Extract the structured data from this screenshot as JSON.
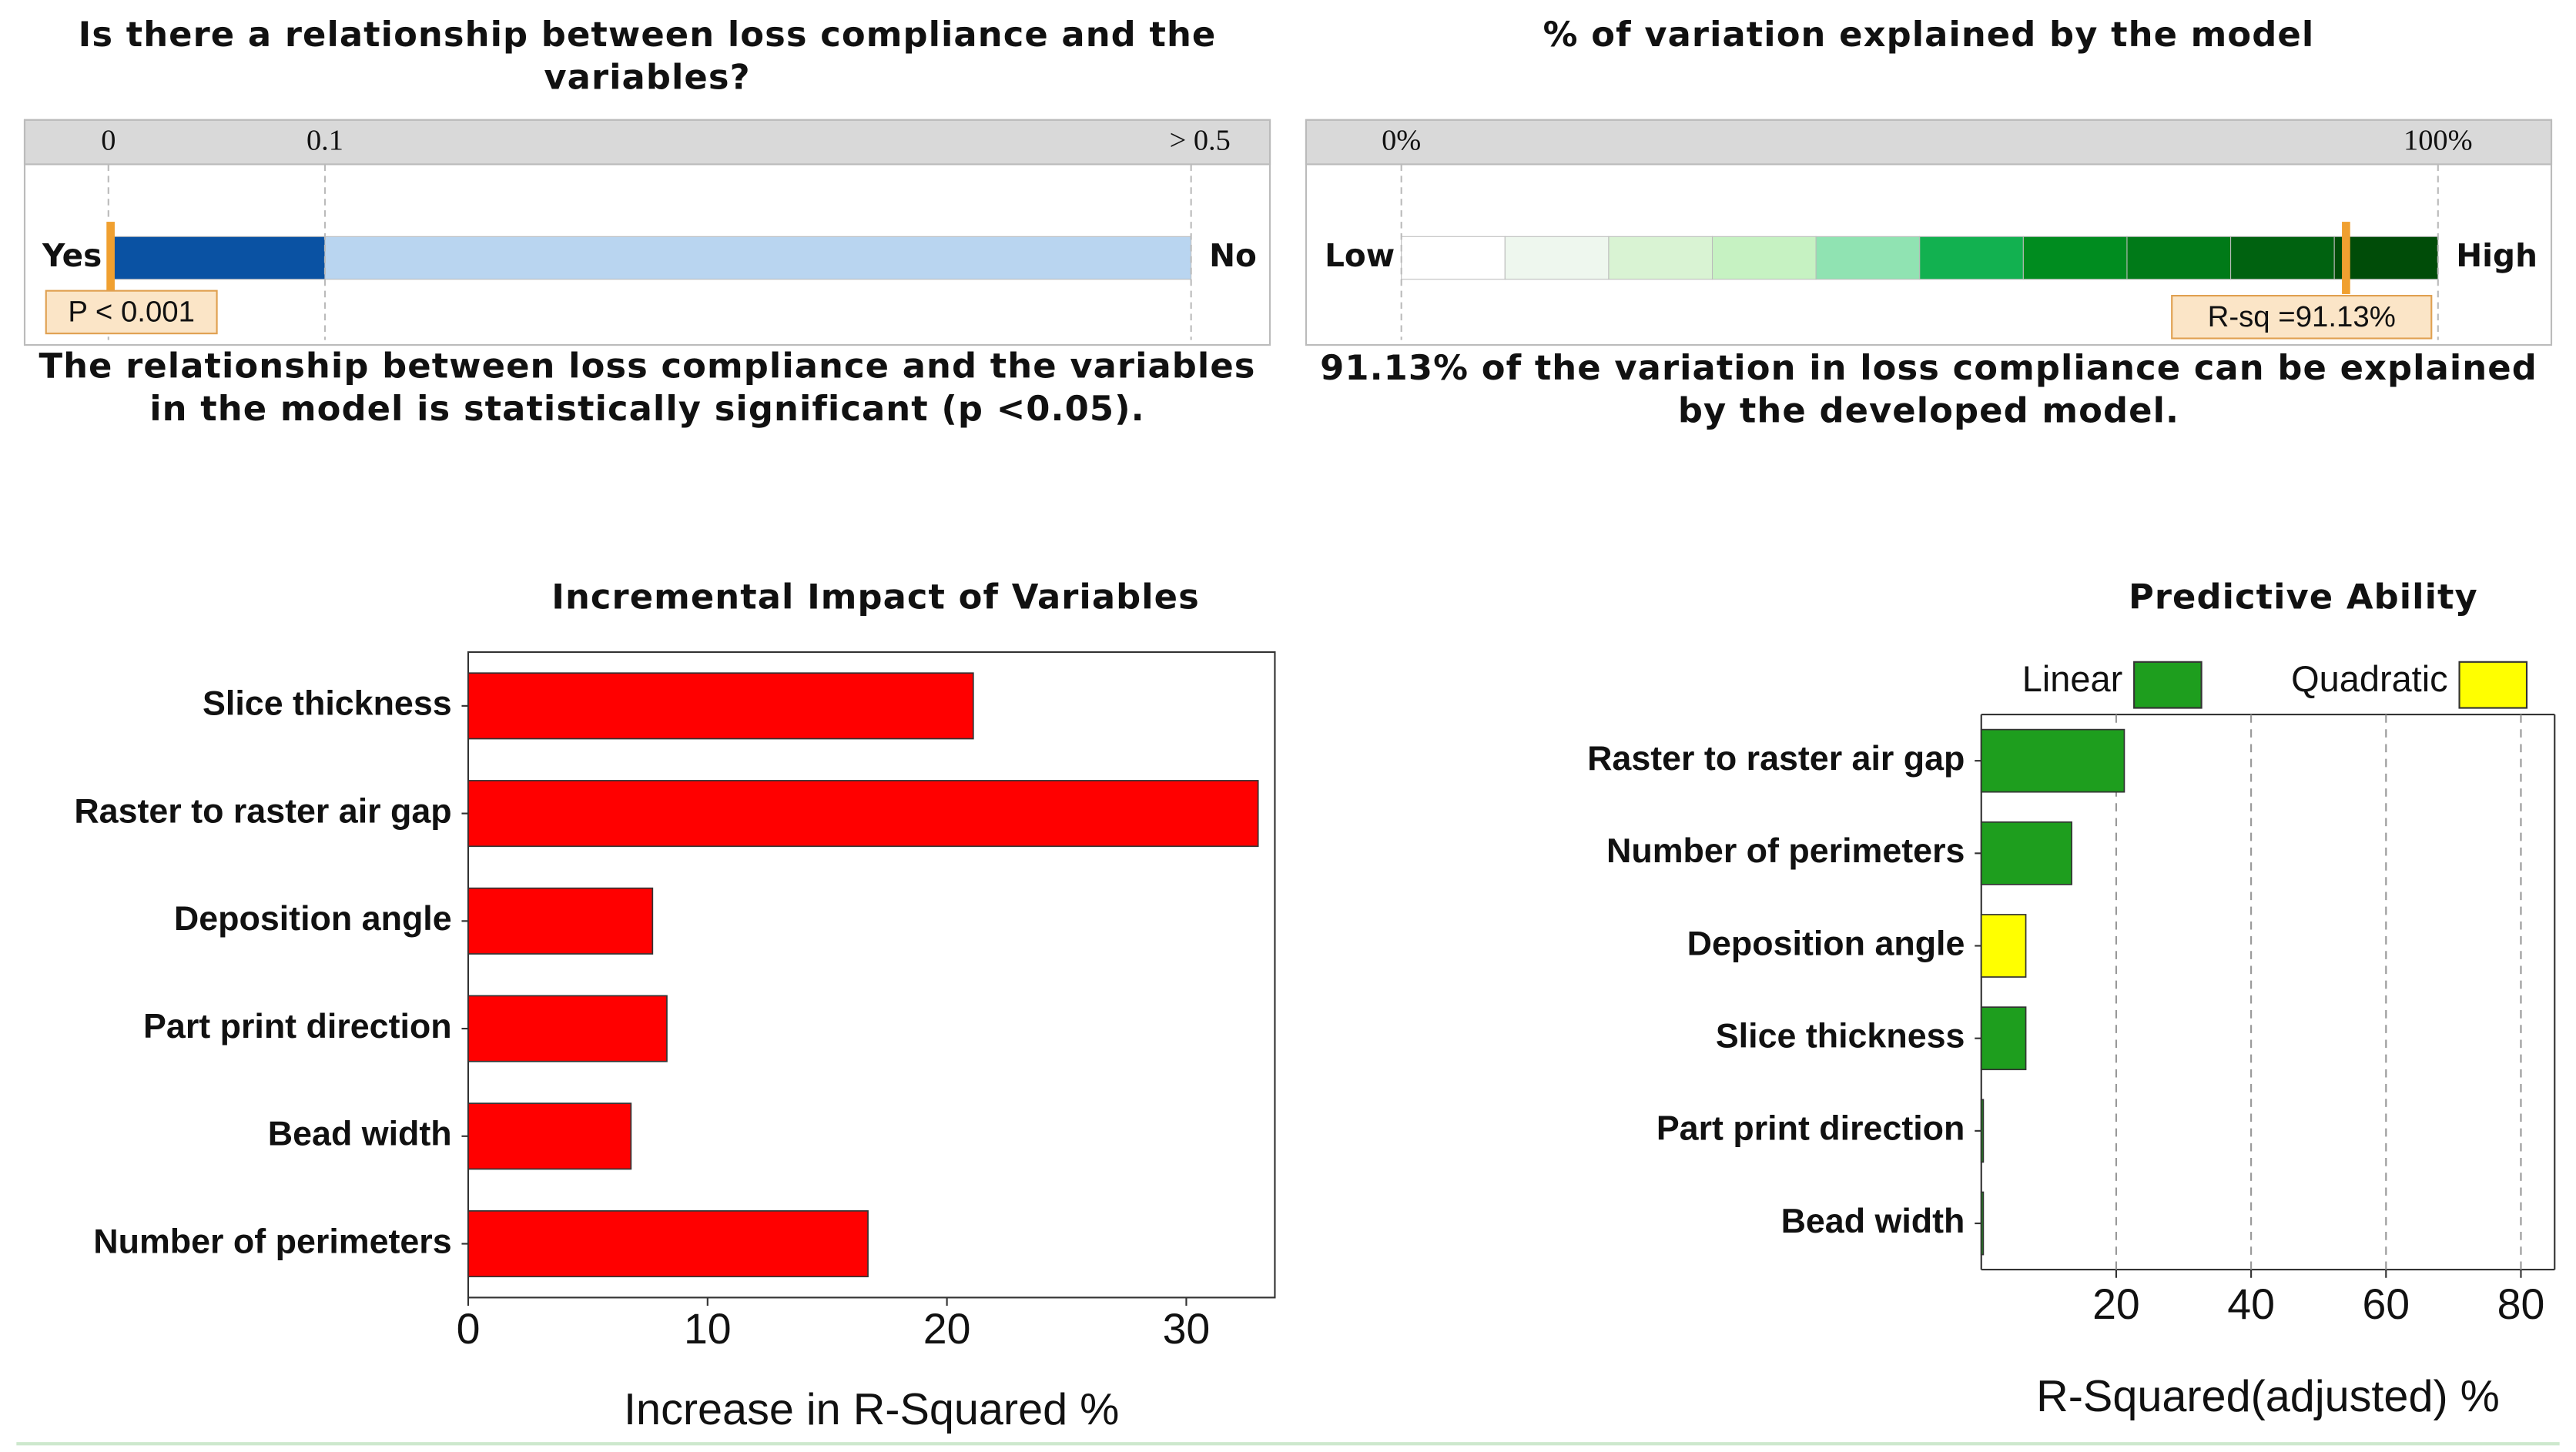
{
  "chart_data": [
    {
      "type": "gauge",
      "title": "Is there a relationship between loss compliance and the variables?",
      "xlim": [
        0,
        0.5
      ],
      "xticks": [
        0,
        0.1,
        {
          "value": 0.5,
          "label": "> 0.5"
        }
      ],
      "left_label": "Yes",
      "right_label": "No",
      "band_colors": [
        "#0a52a3",
        "#b9d5f0"
      ],
      "marker": {
        "value": 0.001,
        "label": "P < 0.001"
      },
      "marker_color": "#f0a030",
      "conclusion": "The relationship between loss compliance and the variables in the model is statistically significant (p <0.05)."
    },
    {
      "type": "gauge",
      "title": "% of variation explained by the model",
      "xlim": [
        0,
        100
      ],
      "xticks": [
        {
          "value": 0,
          "label": "0%"
        },
        {
          "value": 100,
          "label": "100%"
        }
      ],
      "left_label": "Low",
      "right_label": "High",
      "band_colors": [
        "#ffffff",
        "#eef7ee",
        "#d9f3d3",
        "#c6f2c2",
        "#90e3b2",
        "#12b150",
        "#008c1f",
        "#007a18",
        "#006210",
        "#004c08"
      ],
      "marker": {
        "value": 91.13,
        "label": "R-sq =91.13%"
      },
      "marker_color": "#f0a030",
      "conclusion": "91.13% of the variation in loss compliance can be explained by the developed model."
    },
    {
      "type": "hbar",
      "title": "Incremental Impact of Variables",
      "categories": [
        "Slice thickness",
        "Raster to raster air gap",
        "Deposition angle",
        "Part print direction",
        "Bead width",
        "Number of perimeters"
      ],
      "values": [
        21.1,
        33.0,
        7.7,
        8.3,
        6.8,
        16.7
      ],
      "color": "#ff0000",
      "xlim": [
        0,
        33.7
      ],
      "xticks": [
        0,
        10,
        20,
        30
      ],
      "xlabel": "Increase in R-Squared %",
      "grid": false
    },
    {
      "type": "hbar",
      "title": "Predictive Ability",
      "categories": [
        "Raster to raster air gap",
        "Number of perimeters",
        "Deposition angle",
        "Slice thickness",
        "Part print direction",
        "Bead width"
      ],
      "series": [
        {
          "name": "Linear",
          "color": "#1e9e1e",
          "values": [
            21.2,
            13.4,
            null,
            6.6,
            0.3,
            0.3
          ]
        },
        {
          "name": "Quadratic",
          "color": "#ffff00",
          "values": [
            null,
            null,
            6.6,
            null,
            null,
            null
          ]
        }
      ],
      "xlim": [
        0,
        85
      ],
      "xticks": [
        20,
        40,
        60,
        80
      ],
      "xlabel": "R-Squared(adjusted) %",
      "grid": true
    }
  ]
}
